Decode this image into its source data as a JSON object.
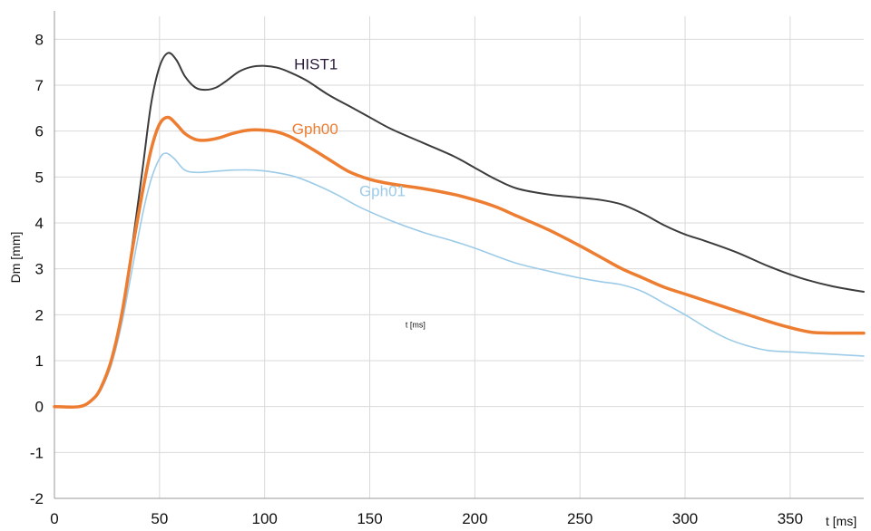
{
  "chart_data": {
    "type": "line",
    "xlabel": "t [ms]",
    "ylabel": "Dm [mm]",
    "annotation": "t [ms]",
    "xlim": [
      0,
      385
    ],
    "ylim": [
      -2,
      8.5
    ],
    "xticks": [
      0,
      50,
      100,
      150,
      200,
      250,
      300,
      350
    ],
    "yticks": [
      -2,
      -1,
      0,
      1,
      2,
      3,
      4,
      5,
      6,
      7,
      8
    ],
    "grid": true,
    "series": [
      {
        "name": "HIST1",
        "color": "#3c3c3c",
        "points": [
          [
            0,
            0
          ],
          [
            12,
            0
          ],
          [
            18,
            0.15
          ],
          [
            22,
            0.4
          ],
          [
            27,
            1.0
          ],
          [
            32,
            2.0
          ],
          [
            37,
            3.5
          ],
          [
            42,
            5.2
          ],
          [
            46,
            6.6
          ],
          [
            50,
            7.4
          ],
          [
            54,
            7.7
          ],
          [
            58,
            7.55
          ],
          [
            62,
            7.2
          ],
          [
            67,
            6.95
          ],
          [
            72,
            6.9
          ],
          [
            77,
            6.95
          ],
          [
            82,
            7.1
          ],
          [
            88,
            7.3
          ],
          [
            94,
            7.4
          ],
          [
            100,
            7.42
          ],
          [
            106,
            7.38
          ],
          [
            112,
            7.28
          ],
          [
            120,
            7.1
          ],
          [
            130,
            6.8
          ],
          [
            140,
            6.55
          ],
          [
            150,
            6.3
          ],
          [
            160,
            6.05
          ],
          [
            175,
            5.75
          ],
          [
            190,
            5.45
          ],
          [
            200,
            5.2
          ],
          [
            210,
            4.95
          ],
          [
            220,
            4.75
          ],
          [
            235,
            4.62
          ],
          [
            250,
            4.55
          ],
          [
            260,
            4.5
          ],
          [
            270,
            4.4
          ],
          [
            280,
            4.2
          ],
          [
            290,
            3.95
          ],
          [
            300,
            3.75
          ],
          [
            310,
            3.6
          ],
          [
            325,
            3.35
          ],
          [
            340,
            3.05
          ],
          [
            355,
            2.8
          ],
          [
            370,
            2.62
          ],
          [
            385,
            2.5
          ]
        ]
      },
      {
        "name": "Gph00",
        "color": "#ed7d31",
        "points": [
          [
            0,
            0
          ],
          [
            12,
            0
          ],
          [
            18,
            0.15
          ],
          [
            22,
            0.4
          ],
          [
            27,
            1.0
          ],
          [
            32,
            2.0
          ],
          [
            37,
            3.4
          ],
          [
            42,
            4.7
          ],
          [
            46,
            5.6
          ],
          [
            50,
            6.15
          ],
          [
            54,
            6.3
          ],
          [
            58,
            6.15
          ],
          [
            62,
            5.95
          ],
          [
            67,
            5.82
          ],
          [
            72,
            5.8
          ],
          [
            78,
            5.85
          ],
          [
            85,
            5.95
          ],
          [
            92,
            6.02
          ],
          [
            100,
            6.02
          ],
          [
            106,
            5.98
          ],
          [
            112,
            5.88
          ],
          [
            120,
            5.68
          ],
          [
            130,
            5.4
          ],
          [
            140,
            5.12
          ],
          [
            150,
            4.95
          ],
          [
            160,
            4.85
          ],
          [
            175,
            4.75
          ],
          [
            190,
            4.62
          ],
          [
            200,
            4.5
          ],
          [
            210,
            4.35
          ],
          [
            220,
            4.15
          ],
          [
            235,
            3.85
          ],
          [
            250,
            3.5
          ],
          [
            260,
            3.25
          ],
          [
            270,
            3.0
          ],
          [
            280,
            2.8
          ],
          [
            290,
            2.6
          ],
          [
            300,
            2.45
          ],
          [
            310,
            2.3
          ],
          [
            320,
            2.15
          ],
          [
            330,
            2.0
          ],
          [
            340,
            1.85
          ],
          [
            350,
            1.72
          ],
          [
            360,
            1.62
          ],
          [
            370,
            1.6
          ],
          [
            385,
            1.6
          ]
        ]
      },
      {
        "name": "Gph01",
        "color": "#9ccbe8",
        "points": [
          [
            0,
            0
          ],
          [
            12,
            0
          ],
          [
            18,
            0.15
          ],
          [
            22,
            0.35
          ],
          [
            27,
            0.9
          ],
          [
            32,
            1.8
          ],
          [
            37,
            3.0
          ],
          [
            42,
            4.2
          ],
          [
            46,
            4.95
          ],
          [
            50,
            5.4
          ],
          [
            53,
            5.52
          ],
          [
            57,
            5.4
          ],
          [
            62,
            5.15
          ],
          [
            68,
            5.1
          ],
          [
            75,
            5.12
          ],
          [
            85,
            5.15
          ],
          [
            95,
            5.15
          ],
          [
            105,
            5.1
          ],
          [
            115,
            5.0
          ],
          [
            125,
            4.82
          ],
          [
            135,
            4.6
          ],
          [
            145,
            4.35
          ],
          [
            160,
            4.05
          ],
          [
            175,
            3.8
          ],
          [
            190,
            3.6
          ],
          [
            200,
            3.45
          ],
          [
            210,
            3.28
          ],
          [
            220,
            3.12
          ],
          [
            235,
            2.95
          ],
          [
            250,
            2.8
          ],
          [
            260,
            2.72
          ],
          [
            270,
            2.65
          ],
          [
            280,
            2.5
          ],
          [
            290,
            2.25
          ],
          [
            300,
            2.0
          ],
          [
            310,
            1.72
          ],
          [
            320,
            1.48
          ],
          [
            330,
            1.32
          ],
          [
            340,
            1.22
          ],
          [
            355,
            1.18
          ],
          [
            370,
            1.14
          ],
          [
            385,
            1.1
          ]
        ]
      }
    ],
    "series_labels": [
      {
        "series": "HIST1",
        "x": 114,
        "y": 7.35
      },
      {
        "series": "Gph00",
        "x": 113,
        "y": 5.93
      },
      {
        "series": "Gph01",
        "x": 145,
        "y": 4.58
      }
    ],
    "annotation_at": {
      "x": 167,
      "y": 1.72
    }
  }
}
